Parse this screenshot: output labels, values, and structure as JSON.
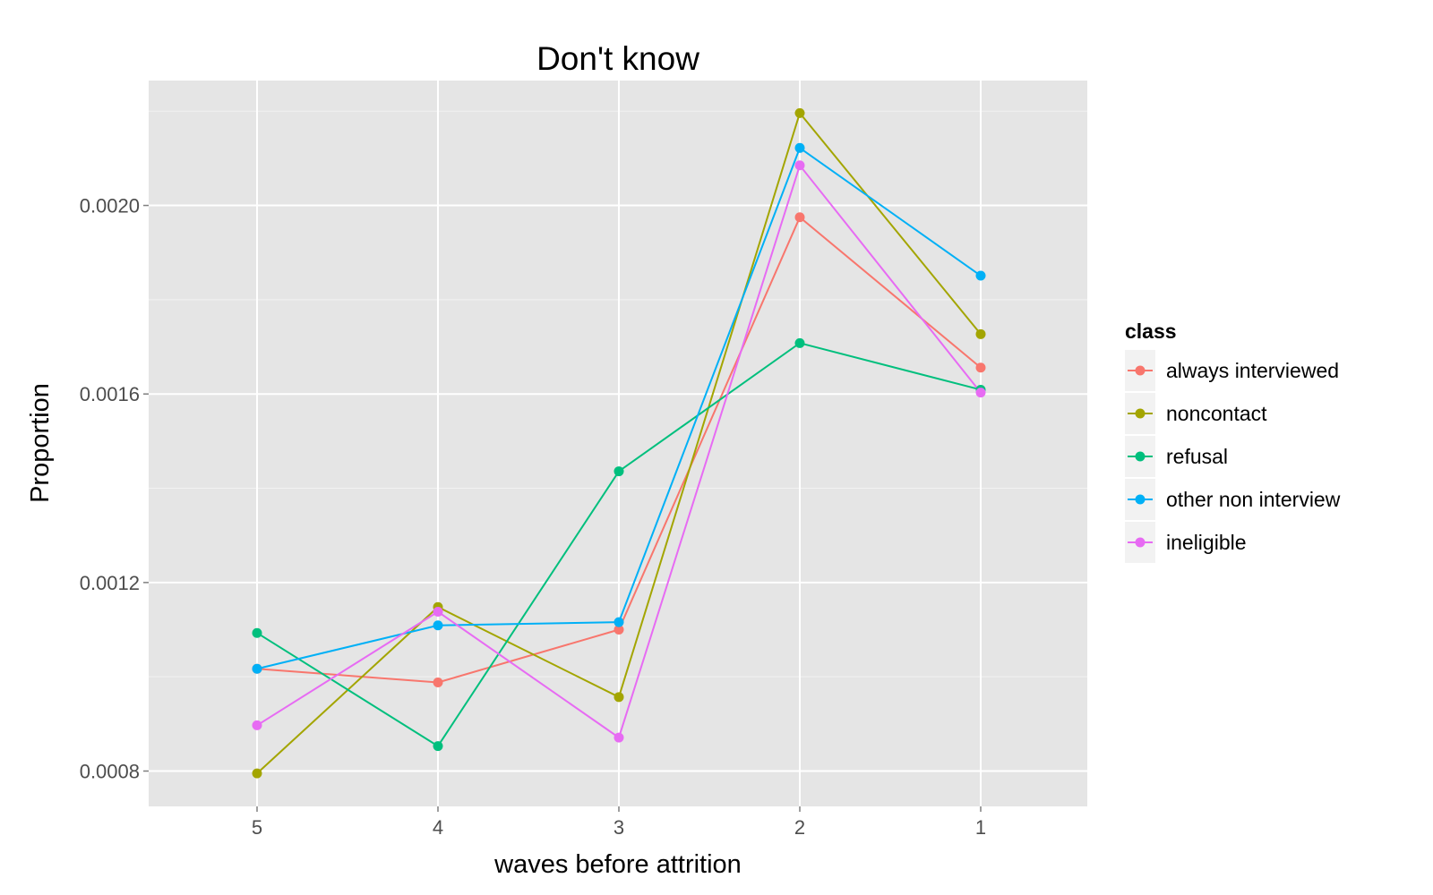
{
  "chart_data": {
    "type": "line",
    "title": "Don't know",
    "xlabel": "waves before attrition",
    "ylabel": "Proportion",
    "categories": [
      "5",
      "4",
      "3",
      "2",
      "1"
    ],
    "yticks": [
      "0.0008",
      "0.0012",
      "0.0016",
      "0.0020"
    ],
    "ytick_values": [
      0.0008,
      0.0012,
      0.0016,
      0.002
    ],
    "ylim": [
      0.000725,
      0.002265
    ],
    "grid": true,
    "legend": {
      "title": "class",
      "placement": "right"
    },
    "series": [
      {
        "name": "always interviewed",
        "color": "#F8766D",
        "values": [
          0.001017,
          0.000988,
          0.0011,
          0.001975,
          0.001656
        ]
      },
      {
        "name": "noncontact",
        "color": "#A3A500",
        "values": [
          0.000795,
          0.001148,
          0.000957,
          0.002196,
          0.001727
        ]
      },
      {
        "name": "refusal",
        "color": "#00BF7D",
        "values": [
          0.001093,
          0.000853,
          0.001436,
          0.001708,
          0.001609
        ]
      },
      {
        "name": "other non interview",
        "color": "#00B0F6",
        "values": [
          0.001017,
          0.001109,
          0.001116,
          0.002122,
          0.001851
        ]
      },
      {
        "name": "ineligible",
        "color": "#E76BF3",
        "values": [
          0.000897,
          0.001138,
          0.000871,
          0.002085,
          0.001603
        ]
      }
    ]
  }
}
